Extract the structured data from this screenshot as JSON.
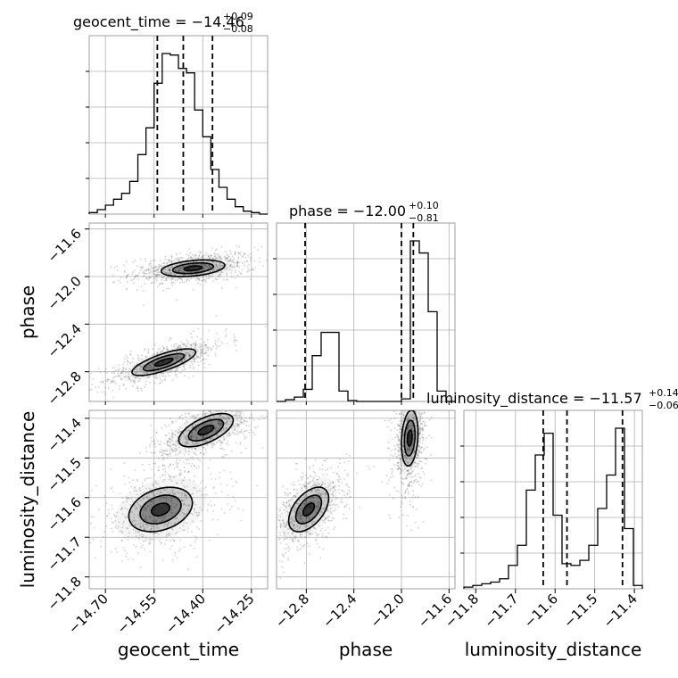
{
  "chart_data": {
    "type": "scatter",
    "kind": "corner-plot",
    "parameters": [
      "geocent_time",
      "phase",
      "luminosity_distance"
    ],
    "colors": {
      "line": "#000000",
      "grid": "#b0b0b0",
      "points": "#555555",
      "density": "#000000"
    },
    "grid": true,
    "axes": {
      "geocent_time": {
        "label": "geocent_time",
        "range": [
          -14.75,
          -14.2
        ],
        "ticks": [
          -14.7,
          -14.55,
          -14.4,
          -14.25
        ],
        "tick_labels": [
          "−14.70",
          "−14.55",
          "−14.40",
          "−14.25"
        ]
      },
      "phase": {
        "label": "phase",
        "range": [
          -13.05,
          -11.55
        ],
        "ticks": [
          -12.8,
          -12.4,
          -12.0,
          -11.6
        ],
        "tick_labels": [
          "−12.8",
          "−12.4",
          "−12.0",
          "−11.6"
        ]
      },
      "luminosity_distance": {
        "label": "luminosity_distance",
        "range": [
          -11.83,
          -11.38
        ],
        "ticks": [
          -11.8,
          -11.7,
          -11.6,
          -11.5,
          -11.4
        ],
        "tick_labels": [
          "−11.8",
          "−11.7",
          "−11.6",
          "−11.5",
          "−11.4"
        ]
      }
    },
    "marginals": [
      {
        "param": "geocent_time",
        "title": {
          "main": "geocent_time = −14.46",
          "sup": "+0.09",
          "sub": "−0.08"
        },
        "median": -14.46,
        "quantiles": [
          -14.54,
          -14.46,
          -14.37
        ],
        "bins": {
          "start": -14.75,
          "width": 0.025,
          "counts": [
            1,
            3,
            6,
            10,
            14,
            22,
            40,
            58,
            88,
            108,
            107,
            98,
            95,
            70,
            52,
            30,
            18,
            10,
            5,
            2,
            1,
            0
          ]
        }
      },
      {
        "param": "phase",
        "title": {
          "main": "phase = −12.00",
          "sup": "+0.10",
          "sub": "−0.81"
        },
        "median": -12.0,
        "quantiles": [
          -12.81,
          -12.0,
          -11.9
        ],
        "bins": {
          "start": -13.05,
          "width": 0.075,
          "counts": [
            0,
            2,
            5,
            14,
            53,
            80,
            80,
            12,
            1,
            0,
            0,
            0,
            0,
            0,
            3,
            186,
            172,
            104,
            12,
            0
          ]
        }
      },
      {
        "param": "luminosity_distance",
        "title": {
          "main": "luminosity_distance = −11.57",
          "sup": "+0.14",
          "sub": "−0.06"
        },
        "median": -11.57,
        "quantiles": [
          -11.63,
          -11.57,
          -11.43
        ],
        "bins": {
          "start": -11.83,
          "width": 0.0225,
          "counts": [
            1,
            2,
            3,
            4,
            6,
            14,
            26,
            59,
            80,
            93,
            44,
            15,
            14,
            17,
            26,
            48,
            68,
            96,
            36,
            2
          ]
        }
      }
    ],
    "joints": [
      {
        "x": "geocent_time",
        "y": "phase",
        "clusters": [
          {
            "mx": -14.43,
            "my": -11.93,
            "sx": 0.07,
            "sy": 0.05,
            "rho": 0.35,
            "weight": 0.54
          },
          {
            "mx": -14.52,
            "my": -12.72,
            "sx": 0.07,
            "sy": 0.08,
            "rho": 0.75,
            "weight": 0.46
          }
        ]
      },
      {
        "x": "geocent_time",
        "y": "luminosity_distance",
        "clusters": [
          {
            "mx": -14.39,
            "my": -11.43,
            "sx": 0.06,
            "sy": 0.03,
            "rho": 0.6,
            "weight": 0.54
          },
          {
            "mx": -14.53,
            "my": -11.63,
            "sx": 0.07,
            "sy": 0.04,
            "rho": 0.3,
            "weight": 0.46
          }
        ]
      },
      {
        "x": "phase",
        "y": "luminosity_distance",
        "clusters": [
          {
            "mx": -11.93,
            "my": -11.45,
            "sx": 0.05,
            "sy": 0.05,
            "rho": 0.2,
            "weight": 0.54
          },
          {
            "mx": -12.78,
            "my": -11.63,
            "sx": 0.12,
            "sy": 0.04,
            "rho": 0.5,
            "weight": 0.46
          }
        ]
      }
    ]
  }
}
